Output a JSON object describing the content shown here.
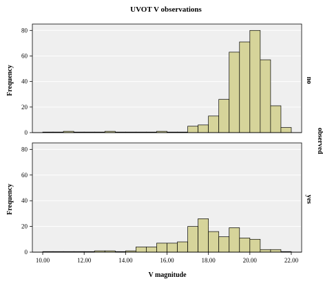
{
  "chart_data": {
    "type": "bar",
    "title": "UVOT V observations",
    "xlabel": "V magnitude",
    "ylabel": "Frequency",
    "facet_label": "observed",
    "x_range": [
      9.5,
      22.5
    ],
    "bin_width": 0.5,
    "x_ticks": [
      "10.00",
      "12.00",
      "14.00",
      "16.00",
      "18.00",
      "20.00",
      "22.00"
    ],
    "x_tick_values": [
      10,
      12,
      14,
      16,
      18,
      20,
      22
    ],
    "y_ticks": [
      "0",
      "20",
      "40",
      "60",
      "80"
    ],
    "y_tick_values": [
      0,
      20,
      40,
      60,
      80
    ],
    "ylim": [
      0,
      85
    ],
    "bin_starts": [
      10.0,
      10.5,
      11.0,
      11.5,
      12.0,
      12.5,
      13.0,
      13.5,
      14.0,
      14.5,
      15.0,
      15.5,
      16.0,
      16.5,
      17.0,
      17.5,
      18.0,
      18.5,
      19.0,
      19.5,
      20.0,
      20.5,
      21.0,
      21.5
    ],
    "panels": [
      {
        "label": "no",
        "values": [
          0,
          0,
          1,
          0,
          0,
          0,
          1,
          0,
          0,
          0,
          0,
          1,
          0,
          0,
          5,
          6,
          13,
          26,
          63,
          71,
          80,
          57,
          21,
          4
        ]
      },
      {
        "label": "yes",
        "values": [
          0,
          0,
          0,
          0,
          0,
          1,
          1,
          0,
          1,
          4,
          4,
          7,
          7,
          8,
          20,
          26,
          16,
          12,
          19,
          11,
          10,
          2,
          2,
          0
        ]
      }
    ]
  }
}
